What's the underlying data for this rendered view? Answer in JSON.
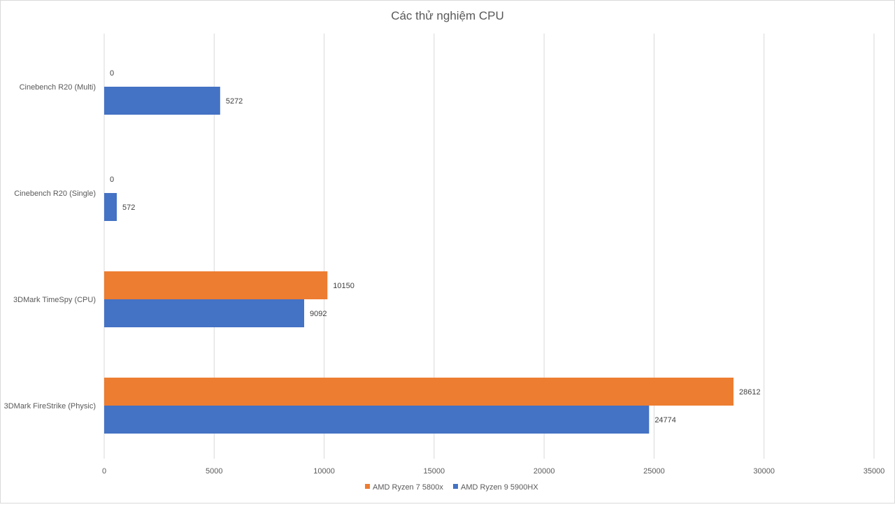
{
  "chart_data": {
    "type": "bar",
    "orientation": "horizontal",
    "title": "Các thử nghiệm CPU",
    "xlabel": "",
    "ylabel": "",
    "categories": [
      "Cinebench R20 (Multi)",
      "Cinebench R20 (Single)",
      "3DMark TimeSpy (CPU)",
      "3DMark FireStrike (Physic)"
    ],
    "series": [
      {
        "name": "AMD Ryzen 7 5800x",
        "color": "#ED7D31",
        "values": [
          0,
          0,
          10150,
          28612
        ]
      },
      {
        "name": "AMD Ryzen 9 5900HX",
        "color": "#4472C4",
        "values": [
          5272,
          572,
          9092,
          24774
        ]
      }
    ],
    "xlim": [
      0,
      35000
    ],
    "xticks": [
      0,
      5000,
      10000,
      15000,
      20000,
      25000,
      30000,
      35000
    ],
    "grid": true,
    "legend_position": "bottom",
    "data_labels": true
  }
}
